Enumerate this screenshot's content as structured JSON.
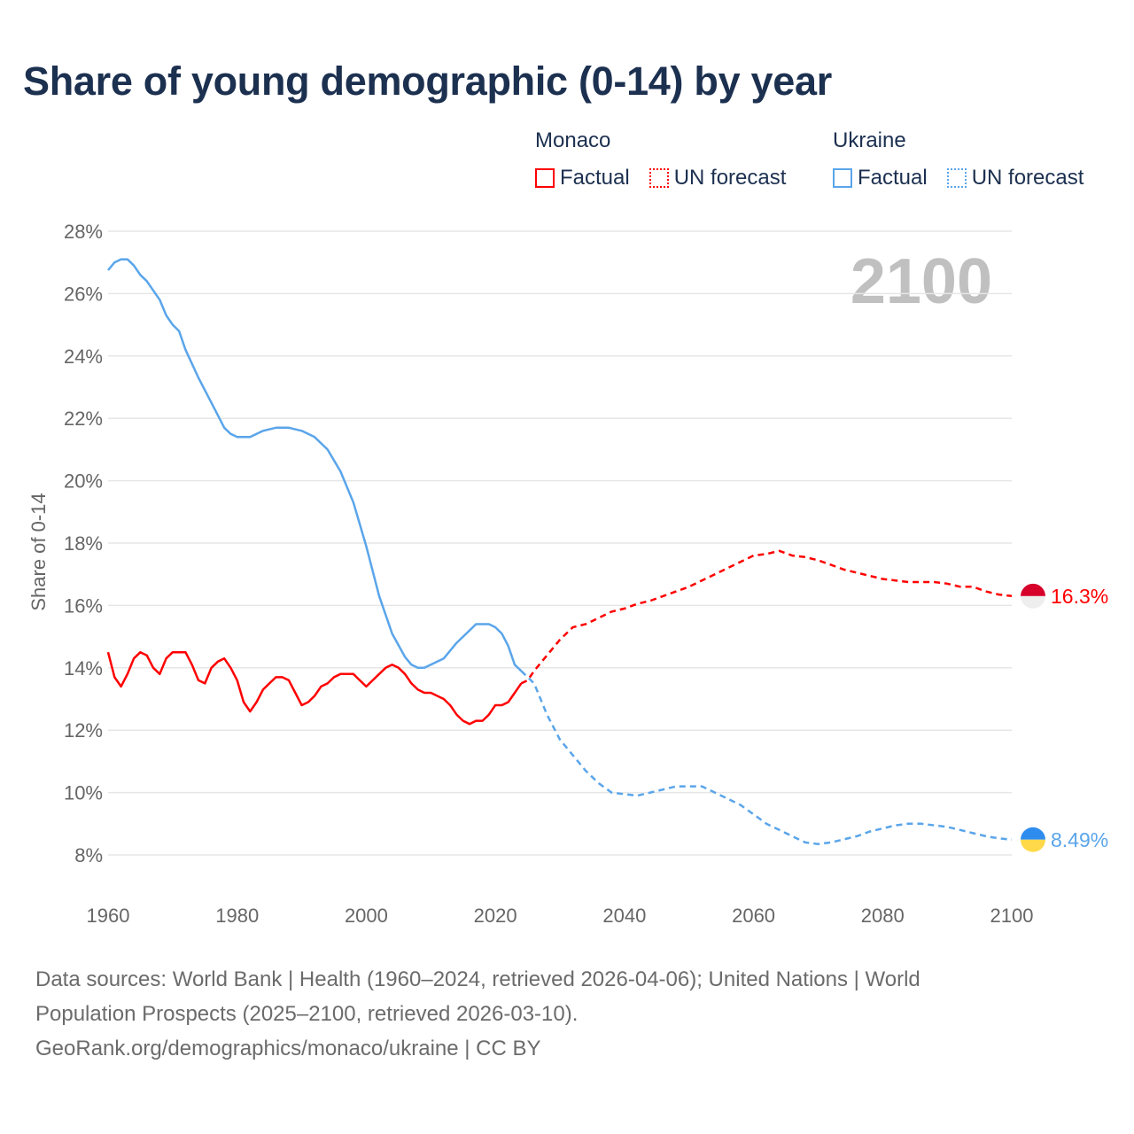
{
  "title": "Share of young demographic (0-14) by year",
  "legend": {
    "groups": [
      {
        "name": "Monaco",
        "color": "#ff0000",
        "items": [
          "Factual",
          "UN forecast"
        ]
      },
      {
        "name": "Ukraine",
        "color": "#5aa5ea",
        "items": [
          "Factual",
          "UN forecast"
        ]
      }
    ]
  },
  "year_watermark": "2100",
  "footer": {
    "line1": "Data sources: World Bank | Health (1960–2024, retrieved 2026-04-06); United Nations | World",
    "line2": "Population Prospects (2025–2100, retrieved 2026-03-10).",
    "line3": "GeoRank.org/demographics/monaco/ukraine | CC BY"
  },
  "chart_data": {
    "type": "line",
    "title": "Share of young demographic (0-14) by year",
    "xlabel": "",
    "ylabel": "Share of 0-14",
    "xlim": [
      1960,
      2100
    ],
    "ylim": [
      8,
      28
    ],
    "x_ticks": [
      "1960",
      "1980",
      "2000",
      "2020",
      "2040",
      "2060",
      "2080",
      "2100"
    ],
    "y_ticks": [
      "8%",
      "10%",
      "12%",
      "14%",
      "16%",
      "18%",
      "20%",
      "22%",
      "24%",
      "26%",
      "28%"
    ],
    "grid": true,
    "legend_position": "top-right",
    "series": [
      {
        "name": "Monaco",
        "color": "#ff0000",
        "end_label": "16.3%",
        "flag_colors": [
          "#d6002a",
          "#eeeeee"
        ],
        "factual": {
          "x": [
            1960,
            1961,
            1962,
            1963,
            1964,
            1965,
            1966,
            1967,
            1968,
            1969,
            1970,
            1971,
            1972,
            1973,
            1974,
            1975,
            1976,
            1977,
            1978,
            1979,
            1980,
            1981,
            1982,
            1983,
            1984,
            1985,
            1986,
            1987,
            1988,
            1989,
            1990,
            1991,
            1992,
            1993,
            1994,
            1995,
            1996,
            1997,
            1998,
            1999,
            2000,
            2001,
            2002,
            2003,
            2004,
            2005,
            2006,
            2007,
            2008,
            2009,
            2010,
            2011,
            2012,
            2013,
            2014,
            2015,
            2016,
            2017,
            2018,
            2019,
            2020,
            2021,
            2022,
            2023,
            2024
          ],
          "y": [
            14.5,
            13.7,
            13.4,
            13.8,
            14.3,
            14.5,
            14.4,
            14.0,
            13.8,
            14.3,
            14.5,
            14.5,
            14.5,
            14.1,
            13.6,
            13.5,
            14.0,
            14.2,
            14.3,
            14.0,
            13.6,
            12.9,
            12.6,
            12.9,
            13.3,
            13.5,
            13.7,
            13.7,
            13.6,
            13.2,
            12.8,
            12.9,
            13.1,
            13.4,
            13.5,
            13.7,
            13.8,
            13.8,
            13.8,
            13.6,
            13.4,
            13.6,
            13.8,
            14.0,
            14.1,
            14.0,
            13.8,
            13.5,
            13.3,
            13.2,
            13.2,
            13.1,
            13.0,
            12.8,
            12.5,
            12.3,
            12.2,
            12.3,
            12.3,
            12.5,
            12.8,
            12.8,
            12.9,
            13.2,
            13.5
          ]
        },
        "forecast": {
          "x": [
            2024,
            2025,
            2026,
            2028,
            2030,
            2032,
            2034,
            2036,
            2038,
            2040,
            2042,
            2044,
            2046,
            2048,
            2050,
            2052,
            2054,
            2056,
            2058,
            2060,
            2062,
            2064,
            2066,
            2068,
            2070,
            2072,
            2074,
            2076,
            2078,
            2080,
            2082,
            2084,
            2086,
            2088,
            2090,
            2092,
            2094,
            2096,
            2098,
            2100
          ],
          "y": [
            13.5,
            13.6,
            13.9,
            14.4,
            14.9,
            15.3,
            15.4,
            15.6,
            15.8,
            15.9,
            16.05,
            16.15,
            16.3,
            16.45,
            16.6,
            16.8,
            17.0,
            17.2,
            17.4,
            17.6,
            17.65,
            17.75,
            17.6,
            17.55,
            17.45,
            17.3,
            17.15,
            17.05,
            16.95,
            16.85,
            16.8,
            16.75,
            16.75,
            16.75,
            16.7,
            16.6,
            16.6,
            16.45,
            16.35,
            16.3
          ]
        }
      },
      {
        "name": "Ukraine",
        "color": "#5aa5ea",
        "end_label": "8.49%",
        "flag_colors": [
          "#2f8cef",
          "#ffd94a"
        ],
        "factual": {
          "x": [
            1960,
            1961,
            1962,
            1963,
            1964,
            1965,
            1966,
            1968,
            1969,
            1970,
            1971,
            1972,
            1974,
            1976,
            1977,
            1978,
            1979,
            1980,
            1982,
            1984,
            1986,
            1988,
            1990,
            1992,
            1994,
            1996,
            1998,
            2000,
            2002,
            2004,
            2006,
            2007,
            2008,
            2009,
            2010,
            2012,
            2014,
            2016,
            2017,
            2018,
            2019,
            2020,
            2021,
            2022,
            2023,
            2024
          ],
          "y": [
            26.75,
            27.0,
            27.1,
            27.1,
            26.9,
            26.6,
            26.4,
            25.8,
            25.3,
            25.0,
            24.8,
            24.2,
            23.3,
            22.5,
            22.1,
            21.7,
            21.5,
            21.4,
            21.4,
            21.6,
            21.7,
            21.7,
            21.6,
            21.4,
            21.0,
            20.3,
            19.3,
            17.9,
            16.3,
            15.1,
            14.35,
            14.1,
            14.0,
            14.0,
            14.1,
            14.3,
            14.8,
            15.2,
            15.4,
            15.4,
            15.4,
            15.3,
            15.1,
            14.7,
            14.1,
            13.9
          ]
        },
        "forecast": {
          "x": [
            2024,
            2025,
            2026,
            2028,
            2030,
            2032,
            2034,
            2036,
            2038,
            2040,
            2042,
            2044,
            2046,
            2048,
            2050,
            2052,
            2054,
            2056,
            2058,
            2060,
            2062,
            2064,
            2066,
            2068,
            2070,
            2072,
            2074,
            2076,
            2078,
            2080,
            2082,
            2084,
            2086,
            2088,
            2090,
            2092,
            2094,
            2096,
            2098,
            2100
          ],
          "y": [
            13.9,
            13.7,
            13.5,
            12.5,
            11.7,
            11.2,
            10.7,
            10.3,
            10.0,
            9.95,
            9.9,
            10.0,
            10.1,
            10.2,
            10.2,
            10.2,
            10.0,
            9.8,
            9.6,
            9.3,
            9.0,
            8.8,
            8.6,
            8.4,
            8.35,
            8.4,
            8.5,
            8.6,
            8.75,
            8.85,
            8.95,
            9.0,
            9.0,
            8.95,
            8.9,
            8.8,
            8.7,
            8.6,
            8.53,
            8.49
          ]
        }
      }
    ]
  }
}
